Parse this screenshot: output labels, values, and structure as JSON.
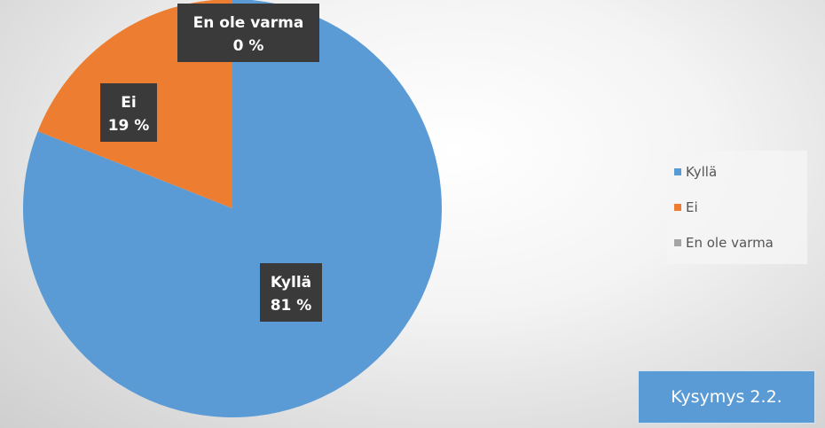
{
  "chart_data": {
    "type": "pie",
    "categories": [
      "Kyllä",
      "Ei",
      "En ole varma"
    ],
    "values": [
      81,
      19,
      0
    ],
    "value_labels": [
      "81 %",
      "19 %",
      "0 %"
    ],
    "colors": [
      "#5b9bd5",
      "#ed7d31",
      "#a5a5a5"
    ],
    "title": "",
    "legend_position": "right"
  },
  "badge": {
    "text": "Kysymys 2.2."
  }
}
